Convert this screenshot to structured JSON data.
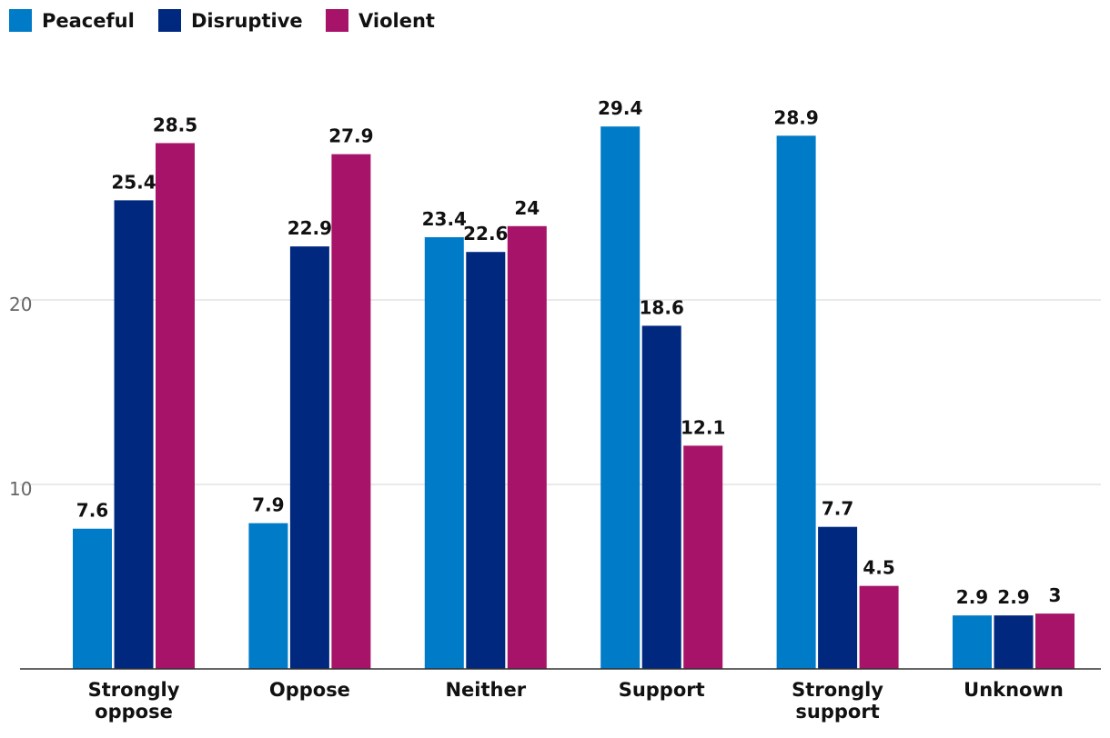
{
  "chart_data": {
    "type": "bar",
    "categories": [
      [
        "Strongly",
        "oppose"
      ],
      [
        "Oppose"
      ],
      [
        "Neither"
      ],
      [
        "Support"
      ],
      [
        "Strongly",
        "support"
      ],
      [
        "Unknown"
      ]
    ],
    "series": [
      {
        "name": "Peaceful",
        "color": "#007BC7",
        "values": [
          7.6,
          7.9,
          23.4,
          29.4,
          28.9,
          2.9
        ],
        "labels": [
          "7.6",
          "7.9",
          "23.4",
          "29.4",
          "28.9",
          "2.9"
        ]
      },
      {
        "name": "Disruptive",
        "color": "#00287F",
        "values": [
          25.4,
          22.9,
          22.6,
          18.6,
          7.7,
          2.9
        ],
        "labels": [
          "25.4",
          "22.9",
          "22.6",
          "18.6",
          "7.7",
          "2.9"
        ]
      },
      {
        "name": "Violent",
        "color": "#A71368",
        "values": [
          28.5,
          27.9,
          24,
          12.1,
          4.5,
          3
        ],
        "labels": [
          "28.5",
          "27.9",
          "24",
          "12.1",
          "4.5",
          "3"
        ]
      }
    ],
    "yticks": [
      10,
      20
    ],
    "ytick_labels": [
      "10",
      "20"
    ],
    "ylim": [
      0,
      31
    ],
    "grid": true,
    "legend": "top-left",
    "title": "",
    "xlabel": "",
    "ylabel": ""
  }
}
